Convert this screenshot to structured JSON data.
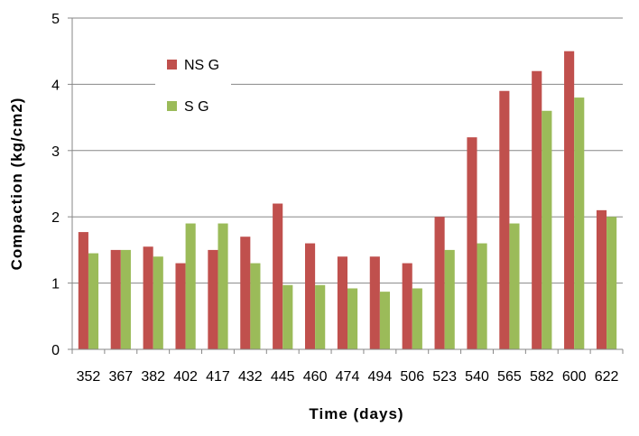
{
  "chart_data": {
    "type": "bar",
    "title": "",
    "xlabel": "Time (days)",
    "ylabel": "Compaction (kg/cm2)",
    "categories": [
      "352",
      "367",
      "382",
      "402",
      "417",
      "432",
      "445",
      "460",
      "474",
      "494",
      "506",
      "523",
      "540",
      "565",
      "582",
      "600",
      "622"
    ],
    "series": [
      {
        "name": "NS G",
        "color": "#c0504d",
        "values": [
          1.77,
          1.5,
          1.55,
          1.3,
          1.5,
          1.7,
          2.2,
          1.6,
          1.4,
          1.4,
          1.3,
          2.0,
          3.2,
          3.9,
          4.2,
          4.5,
          2.1
        ]
      },
      {
        "name": "S G",
        "color": "#9bbb59",
        "values": [
          1.45,
          1.5,
          1.4,
          1.9,
          1.9,
          1.3,
          0.97,
          0.97,
          0.92,
          0.87,
          0.92,
          1.5,
          1.6,
          1.9,
          3.6,
          3.8,
          2.0
        ]
      }
    ],
    "ylim": [
      0,
      5
    ],
    "yticks": [
      "0",
      "1",
      "2",
      "3",
      "4",
      "5"
    ],
    "grid": true,
    "legend_position": "top-left (inside plot)"
  }
}
